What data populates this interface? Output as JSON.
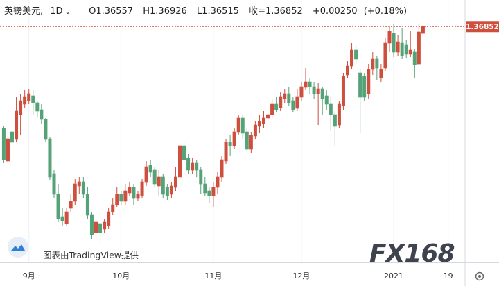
{
  "chart_data": {
    "type": "candlestick",
    "title": "英镑美元,",
    "interval": "1D",
    "ohlc_prefixes": [
      "O",
      "H",
      "L",
      "收="
    ],
    "change": "+0.00250",
    "change_pct": "(+0.18%)",
    "attribution": "图表由TradingView提供",
    "watermark": "FX168",
    "up_color": "#cf4f3f",
    "down_color": "#56a278",
    "grid": true,
    "ylim": [
      1.2666,
      1.38
    ],
    "categories": [
      null,
      null,
      null,
      null,
      null,
      null,
      "9月",
      null,
      null,
      null,
      null,
      null,
      null,
      null,
      null,
      null,
      null,
      null,
      null,
      null,
      null,
      null,
      null,
      null,
      null,
      null,
      null,
      null,
      "10月",
      null,
      null,
      null,
      null,
      null,
      null,
      null,
      null,
      null,
      null,
      null,
      null,
      null,
      null,
      null,
      null,
      null,
      null,
      null,
      null,
      null,
      "11月",
      null,
      null,
      null,
      null,
      null,
      null,
      null,
      null,
      null,
      null,
      null,
      null,
      null,
      null,
      null,
      null,
      null,
      null,
      null,
      null,
      "12月",
      null,
      null,
      null,
      null,
      null,
      null,
      null,
      null,
      null,
      null,
      null,
      null,
      null,
      null,
      null,
      null,
      null,
      null,
      null,
      null,
      null,
      "2021",
      null,
      null,
      null,
      null,
      null,
      null,
      null,
      null,
      null,
      null,
      null,
      null,
      "19"
    ],
    "open": [
      1.3245,
      1.3104,
      1.323,
      1.32,
      1.3305,
      1.335,
      1.3365,
      1.3386,
      1.3356,
      1.3326,
      1.3284,
      1.32,
      1.305,
      1.296,
      1.2864,
      1.2834,
      1.29,
      1.293,
      1.2996,
      1.3014,
      1.296,
      1.287,
      1.2795,
      1.2834,
      1.281,
      1.2825,
      1.2885,
      1.2915,
      1.296,
      1.293,
      1.2966,
      1.299,
      1.2945,
      1.2954,
      1.3014,
      1.3086,
      1.3065,
      1.2996,
      1.3035,
      1.299,
      1.296,
      1.299,
      1.3035,
      1.317,
      1.3116,
      1.3065,
      1.3095,
      1.3065,
      1.3005,
      1.2975,
      1.2954,
      1.299,
      1.3035,
      1.3104,
      1.3185,
      1.317,
      1.323,
      1.329,
      1.323,
      1.3155,
      1.3212,
      1.3254,
      1.3266,
      1.329,
      1.3305,
      1.335,
      1.3335,
      1.3374,
      1.3395,
      1.3365,
      1.3332,
      1.338,
      1.3422,
      1.3446,
      1.3425,
      1.3395,
      1.3416,
      1.3386,
      1.335,
      1.3305,
      1.326,
      1.3344,
      1.3476,
      1.3515,
      1.3584,
      1.3485,
      1.347,
      1.3395,
      1.35,
      1.3545,
      1.3464,
      1.3506,
      1.3614,
      1.3656,
      1.3575,
      1.3614,
      1.3605,
      1.3566,
      1.3575,
      1.3524,
      1.36557,
      null,
      null,
      null,
      null,
      null,
      null
    ],
    "high": [
      1.3254,
      1.3245,
      1.3254,
      1.338,
      1.3395,
      1.341,
      1.3416,
      1.341,
      1.3365,
      1.335,
      1.329,
      1.3206,
      1.3065,
      1.3005,
      1.29,
      1.29,
      1.296,
      1.3026,
      1.3035,
      1.3035,
      1.299,
      1.2885,
      1.2855,
      1.2846,
      1.2855,
      1.29,
      1.2945,
      1.299,
      1.2975,
      1.3005,
      1.3014,
      1.3005,
      1.2975,
      1.3026,
      1.3104,
      1.311,
      1.308,
      1.3065,
      1.305,
      1.3005,
      1.3014,
      1.308,
      1.3185,
      1.3185,
      1.3134,
      1.3116,
      1.311,
      1.308,
      1.3035,
      1.299,
      1.3014,
      1.3056,
      1.3125,
      1.32,
      1.3215,
      1.3245,
      1.3305,
      1.3305,
      1.3245,
      1.323,
      1.3275,
      1.3305,
      1.332,
      1.3326,
      1.3374,
      1.338,
      1.3404,
      1.3416,
      1.3425,
      1.338,
      1.3416,
      1.3446,
      1.3506,
      1.3464,
      1.3446,
      1.344,
      1.3425,
      1.341,
      1.338,
      1.332,
      1.3365,
      1.3485,
      1.3536,
      1.3614,
      1.3605,
      1.35,
      1.3485,
      1.3524,
      1.3575,
      1.356,
      1.3524,
      1.3635,
      1.3686,
      1.3698,
      1.365,
      1.368,
      1.3626,
      1.3668,
      1.359,
      1.3695,
      1.36926,
      null,
      null,
      null,
      null,
      null,
      null
    ],
    "low": [
      1.3095,
      1.3092,
      1.317,
      1.3185,
      1.3215,
      1.3335,
      1.335,
      1.3305,
      1.3296,
      1.3266,
      1.3185,
      1.302,
      1.2945,
      1.284,
      1.2825,
      1.2825,
      1.2885,
      1.2915,
      1.296,
      1.2945,
      1.2855,
      1.2765,
      1.275,
      1.2756,
      1.2795,
      1.281,
      1.287,
      1.2906,
      1.2915,
      1.2915,
      1.2954,
      1.2915,
      1.293,
      1.2945,
      1.2996,
      1.3035,
      1.299,
      1.2954,
      1.2945,
      1.2936,
      1.2945,
      1.2975,
      1.302,
      1.3095,
      1.305,
      1.305,
      1.3035,
      1.296,
      1.2954,
      1.2924,
      1.2906,
      1.296,
      1.3014,
      1.3092,
      1.3125,
      1.3155,
      1.3215,
      1.32,
      1.3146,
      1.314,
      1.32,
      1.3224,
      1.3245,
      1.3275,
      1.329,
      1.3314,
      1.332,
      1.3356,
      1.3344,
      1.3314,
      1.332,
      1.3365,
      1.341,
      1.3395,
      1.3374,
      1.326,
      1.3305,
      1.3326,
      1.3236,
      1.317,
      1.3245,
      1.3326,
      1.3464,
      1.35,
      1.3524,
      1.3224,
      1.3365,
      1.3374,
      1.3476,
      1.3455,
      1.3446,
      1.3494,
      1.3575,
      1.3554,
      1.356,
      1.3545,
      1.3548,
      1.3554,
      1.3464,
      1.3515,
      1.36515,
      null,
      null,
      null,
      null,
      null,
      null
    ],
    "close": [
      1.311,
      1.32,
      1.3185,
      1.332,
      1.3365,
      1.338,
      1.3395,
      1.3356,
      1.332,
      1.3284,
      1.32,
      1.3035,
      1.296,
      1.2855,
      1.2846,
      1.2885,
      1.293,
      1.3005,
      1.3014,
      1.296,
      1.287,
      1.2786,
      1.284,
      1.2795,
      1.284,
      1.2885,
      1.2915,
      1.296,
      1.293,
      1.2975,
      1.299,
      1.2945,
      1.296,
      1.3014,
      1.308,
      1.3056,
      1.3005,
      1.3035,
      1.296,
      1.2954,
      1.2996,
      1.3035,
      1.317,
      1.311,
      1.3065,
      1.3095,
      1.3065,
      1.3005,
      1.2966,
      1.2954,
      1.299,
      1.3035,
      1.311,
      1.3185,
      1.317,
      1.323,
      1.329,
      1.3224,
      1.3155,
      1.3215,
      1.326,
      1.3275,
      1.329,
      1.3305,
      1.335,
      1.3326,
      1.338,
      1.3395,
      1.3356,
      1.3326,
      1.338,
      1.3425,
      1.3446,
      1.3425,
      1.3395,
      1.3416,
      1.3374,
      1.335,
      1.3305,
      1.3254,
      1.335,
      1.347,
      1.3515,
      1.3584,
      1.3545,
      1.338,
      1.338,
      1.35,
      1.3545,
      1.3506,
      1.35,
      1.3614,
      1.3665,
      1.3575,
      1.362,
      1.356,
      1.3566,
      1.3584,
      1.3521,
      1.3662,
      1.36852,
      null,
      null,
      null,
      null,
      null,
      null
    ]
  }
}
